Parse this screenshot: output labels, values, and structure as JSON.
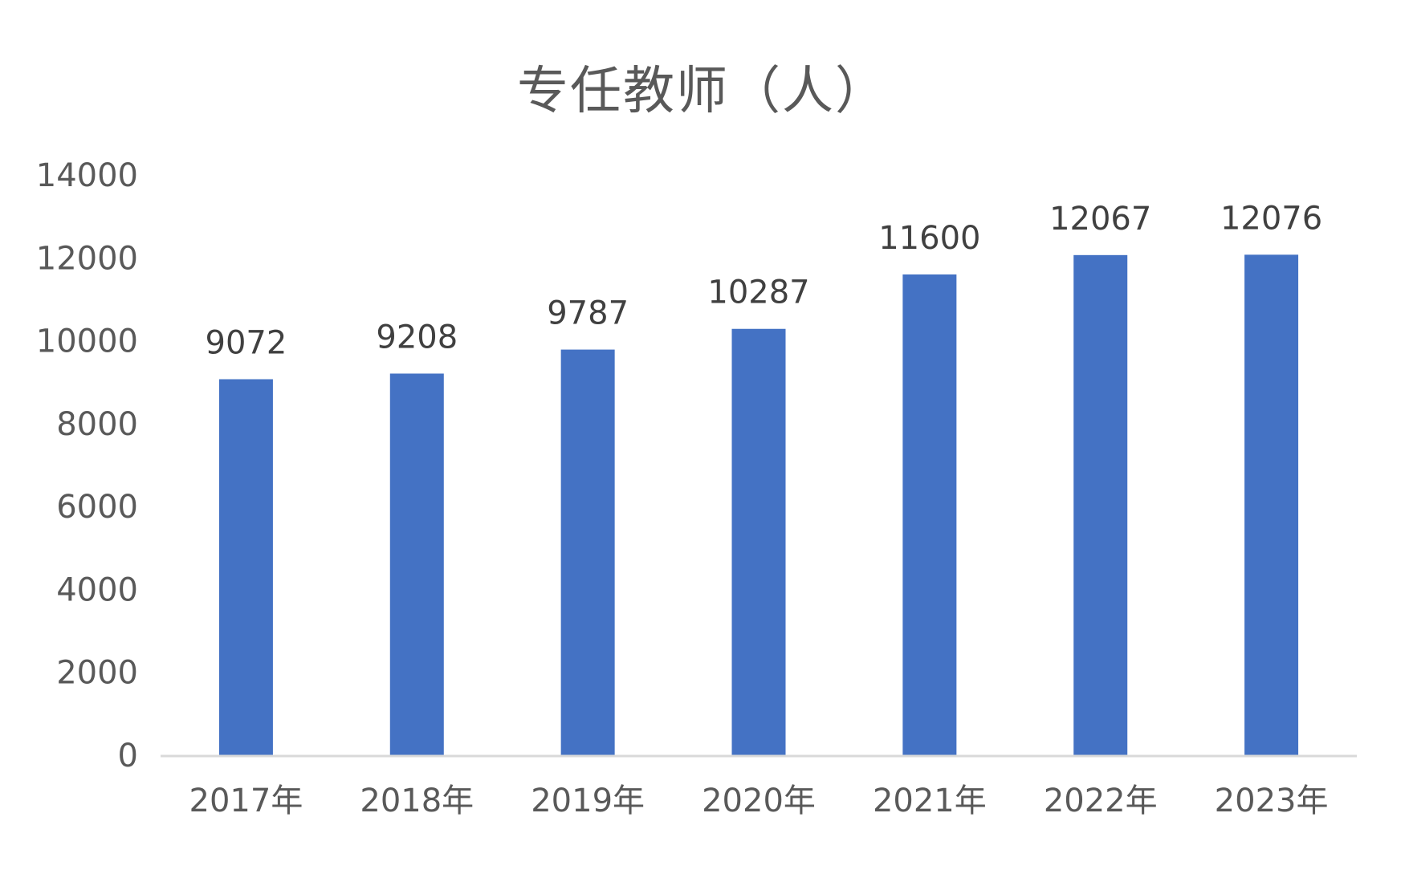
{
  "chart_data": {
    "type": "bar",
    "title": "专任教师（人）",
    "xlabel": "",
    "ylabel": "",
    "categories": [
      "2017年",
      "2018年",
      "2019年",
      "2020年",
      "2021年",
      "2022年",
      "2023年"
    ],
    "series": [
      {
        "values": [
          9072,
          9208,
          9787,
          10287,
          11600,
          12067,
          12076
        ]
      }
    ],
    "ylim": [
      0,
      14000
    ],
    "yticks": [
      0,
      2000,
      4000,
      6000,
      8000,
      10000,
      12000,
      14000
    ],
    "grid": false,
    "legend": "none",
    "data_labels": true,
    "bar_color": "#4472C4",
    "axis_color": "#D9D9D9",
    "tick_label_color": "#595959",
    "data_label_color": "#404040"
  }
}
